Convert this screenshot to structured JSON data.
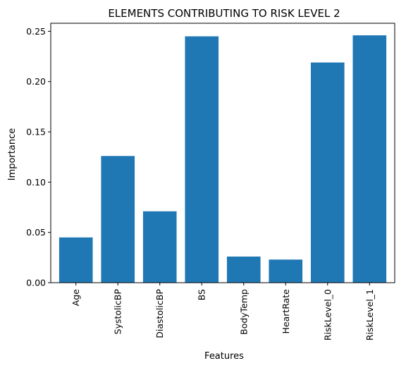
{
  "chart_data": {
    "type": "bar",
    "title": "ELEMENTS CONTRIBUTING TO RISK LEVEL 2",
    "xlabel": "Features",
    "ylabel": "Importance",
    "categories": [
      "Age",
      "SystolicBP",
      "DiastolicBP",
      "BS",
      "BodyTemp",
      "HeartRate",
      "RiskLevel_0",
      "RiskLevel_1"
    ],
    "values": [
      0.045,
      0.126,
      0.071,
      0.245,
      0.026,
      0.023,
      0.219,
      0.246
    ],
    "ylim": [
      0,
      0.258
    ],
    "yticks": [
      0.0,
      0.05,
      0.1,
      0.15,
      0.2,
      0.25
    ],
    "ytick_labels": [
      "0.00",
      "0.05",
      "0.10",
      "0.15",
      "0.20",
      "0.25"
    ],
    "grid": false,
    "bar_color": "#1f77b4"
  }
}
